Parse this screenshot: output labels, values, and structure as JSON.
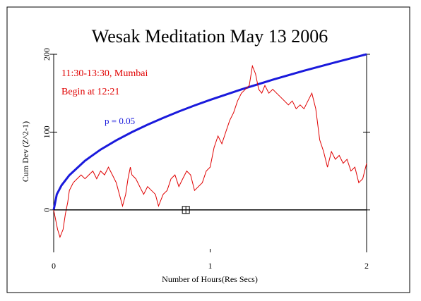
{
  "chart_data": {
    "type": "line",
    "title": "Wesak Meditation May 13 2006",
    "xlabel": "Number of Hours(Res Secs)",
    "ylabel": "Cum Dev (Z^2-1)",
    "annotations": [
      "11:30-13:30, Mumbai",
      "Begin at 12:21"
    ],
    "xlim": [
      0,
      2
    ],
    "xticks": [
      0,
      1,
      2
    ],
    "ylim": [
      -50,
      200
    ],
    "yticks": [
      0,
      100,
      200
    ],
    "marker": {
      "x": 0.845,
      "y": 0
    },
    "series": [
      {
        "name": "p = 0.05",
        "color": "#1a1adc",
        "x": [
          0,
          0.02,
          0.05,
          0.1,
          0.2,
          0.3,
          0.4,
          0.5,
          0.6,
          0.7,
          0.8,
          0.9,
          1.0,
          1.2,
          1.4,
          1.6,
          1.8,
          2.0
        ],
        "values": [
          0,
          20,
          31.6,
          44.7,
          63.2,
          77.5,
          89.4,
          100,
          109.5,
          118.3,
          126.5,
          134.2,
          141.4,
          154.9,
          167.3,
          178.9,
          189.7,
          200
        ]
      },
      {
        "name": "Cum Dev",
        "color": "#e00000",
        "x": [
          0,
          0.025,
          0.04,
          0.06,
          0.075,
          0.09,
          0.1,
          0.125,
          0.15,
          0.175,
          0.2,
          0.225,
          0.25,
          0.275,
          0.3,
          0.325,
          0.35,
          0.375,
          0.4,
          0.42,
          0.44,
          0.46,
          0.475,
          0.49,
          0.5,
          0.525,
          0.55,
          0.575,
          0.6,
          0.625,
          0.65,
          0.67,
          0.7,
          0.725,
          0.75,
          0.775,
          0.8,
          0.825,
          0.85,
          0.875,
          0.9,
          0.925,
          0.95,
          0.975,
          1.0,
          1.025,
          1.05,
          1.075,
          1.1,
          1.125,
          1.15,
          1.175,
          1.2,
          1.225,
          1.25,
          1.27,
          1.29,
          1.31,
          1.33,
          1.35,
          1.375,
          1.4,
          1.425,
          1.45,
          1.475,
          1.5,
          1.525,
          1.55,
          1.575,
          1.6,
          1.625,
          1.65,
          1.675,
          1.7,
          1.725,
          1.75,
          1.775,
          1.8,
          1.825,
          1.85,
          1.875,
          1.9,
          1.925,
          1.95,
          1.975,
          2.0
        ],
        "values": [
          0,
          -25,
          -35,
          -25,
          -5,
          10,
          25,
          35,
          40,
          45,
          40,
          45,
          50,
          40,
          50,
          45,
          55,
          45,
          35,
          20,
          5,
          20,
          40,
          55,
          45,
          40,
          30,
          20,
          30,
          25,
          20,
          5,
          20,
          25,
          40,
          45,
          30,
          40,
          50,
          45,
          25,
          30,
          35,
          50,
          55,
          80,
          95,
          85,
          100,
          115,
          125,
          140,
          150,
          155,
          160,
          185,
          175,
          155,
          150,
          160,
          150,
          155,
          150,
          145,
          140,
          135,
          140,
          130,
          135,
          130,
          140,
          150,
          130,
          90,
          75,
          55,
          75,
          65,
          70,
          60,
          65,
          50,
          55,
          35,
          40,
          60
        ]
      }
    ]
  }
}
